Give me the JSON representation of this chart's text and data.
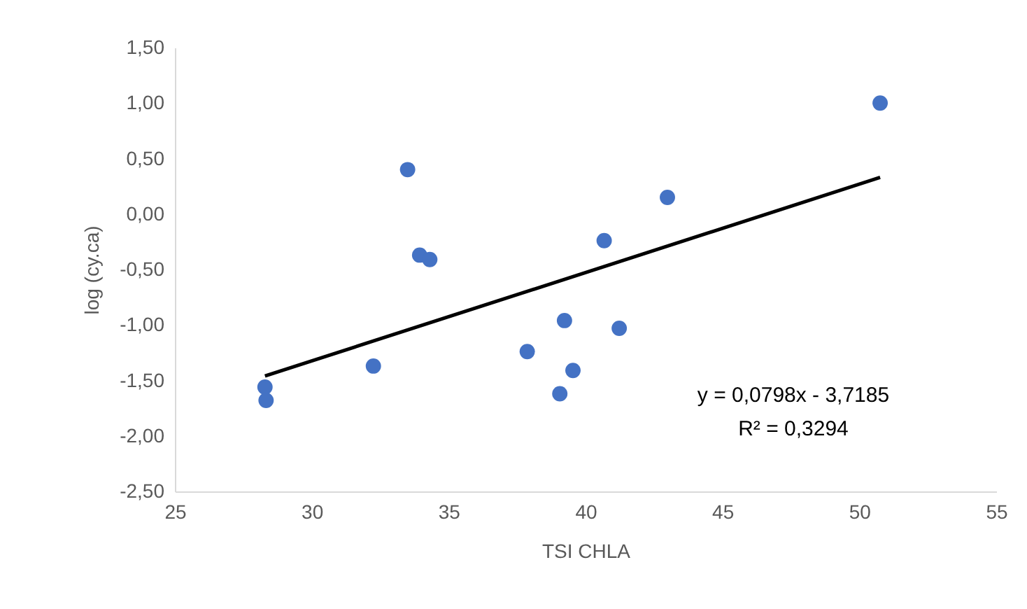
{
  "chart_data": {
    "type": "scatter",
    "xlabel": "TSI CHLA",
    "ylabel": "log (cy.ca)",
    "xlim": [
      25,
      55
    ],
    "xticks": [
      25,
      30,
      35,
      40,
      45,
      50,
      55
    ],
    "ylim": [
      -2.5,
      1.5
    ],
    "yticks": [
      {
        "value": -2.5,
        "label": "-2,50"
      },
      {
        "value": -2,
        "label": "-2,00"
      },
      {
        "value": -1.5,
        "label": "-1,50"
      },
      {
        "value": -1,
        "label": "-1,00"
      },
      {
        "value": -0.5,
        "label": "-0,50"
      },
      {
        "value": 0,
        "label": "0,00"
      },
      {
        "value": 0.5,
        "label": "0,50"
      },
      {
        "value": 1,
        "label": "1,00"
      },
      {
        "value": 1.5,
        "label": "1,50"
      }
    ],
    "grid": false,
    "series": [
      {
        "color": "#4472c4",
        "marker": "circle",
        "x": [
          28.29,
          28.33,
          32.25,
          33.5,
          33.94,
          34.31,
          37.87,
          39.06,
          39.23,
          39.54,
          40.68,
          41.23,
          42.99,
          50.76
        ],
        "values": [
          -1.56,
          -1.68,
          -1.37,
          0.4,
          -0.37,
          -0.41,
          -1.24,
          -1.62,
          -0.96,
          -1.41,
          -0.24,
          -1.03,
          0.15,
          1.0
        ]
      },
      {
        "type": "line",
        "color": "#000000",
        "line_style": "solid",
        "marker": "none",
        "x": [
          28.29,
          50.76
        ],
        "values": [
          -1.46,
          0.33
        ]
      }
    ],
    "annotations": [
      "y = 0,0798x - 3,7185",
      "R² = 0,3294"
    ]
  }
}
